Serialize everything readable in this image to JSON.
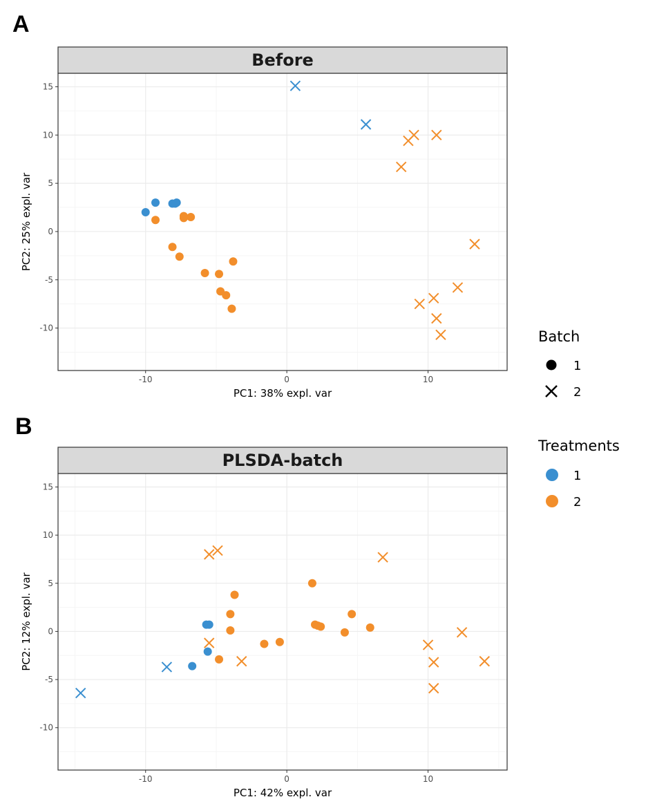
{
  "figure": {
    "panel_labels": [
      "A",
      "B"
    ]
  },
  "colors": {
    "treatment_1": "#3a8fd0",
    "treatment_2": "#f28e2b",
    "strip_fill": "#d9d9d9",
    "grid_major": "#ebebeb",
    "grid_minor": "#f5f5f5",
    "panel_border": "#333333"
  },
  "legend": {
    "batch": {
      "title": "Batch",
      "entries": [
        {
          "label": "1",
          "shape": "circle"
        },
        {
          "label": "2",
          "shape": "cross"
        }
      ]
    },
    "treatments": {
      "title": "Treatments",
      "entries": [
        {
          "label": "1",
          "color": "#3a8fd0"
        },
        {
          "label": "2",
          "color": "#f28e2b"
        }
      ]
    }
  },
  "chart_data": [
    {
      "type": "scatter",
      "panel": "A",
      "title": "Before",
      "xlabel": "PC1: 38% expl. var",
      "ylabel": "PC2: 25% expl. var",
      "xlim": [
        -16.2,
        15.6
      ],
      "ylim": [
        -14.4,
        16.4
      ],
      "xticks": [
        -10,
        0,
        10
      ],
      "yticks": [
        -10,
        -5,
        0,
        5,
        10,
        15
      ],
      "grid": true,
      "series": [
        {
          "treatment": "1",
          "batch": "1",
          "points": [
            [
              -10.0,
              2.0
            ],
            [
              -9.3,
              3.0
            ],
            [
              -8.1,
              2.9
            ],
            [
              -7.8,
              3.0
            ],
            [
              -7.9,
              2.9
            ]
          ]
        },
        {
          "treatment": "2",
          "batch": "1",
          "points": [
            [
              -9.3,
              1.2
            ],
            [
              -7.3,
              1.6
            ],
            [
              -7.3,
              1.4
            ],
            [
              -6.8,
              1.5
            ],
            [
              -8.1,
              -1.6
            ],
            [
              -7.6,
              -2.6
            ],
            [
              -5.8,
              -4.3
            ],
            [
              -4.8,
              -4.4
            ],
            [
              -3.8,
              -3.1
            ],
            [
              -4.7,
              -6.2
            ],
            [
              -4.3,
              -6.6
            ],
            [
              -3.9,
              -8.0
            ]
          ]
        },
        {
          "treatment": "1",
          "batch": "2",
          "points": [
            [
              0.6,
              15.1
            ],
            [
              5.6,
              11.1
            ]
          ]
        },
        {
          "treatment": "2",
          "batch": "2",
          "points": [
            [
              8.1,
              6.7
            ],
            [
              8.6,
              9.4
            ],
            [
              9.0,
              10.0
            ],
            [
              10.6,
              10.0
            ],
            [
              13.3,
              -1.3
            ],
            [
              12.1,
              -5.8
            ],
            [
              9.4,
              -7.5
            ],
            [
              10.4,
              -6.9
            ],
            [
              10.6,
              -9.0
            ],
            [
              10.9,
              -10.7
            ]
          ]
        }
      ]
    },
    {
      "type": "scatter",
      "panel": "B",
      "title": "PLSDA-batch",
      "xlabel": "PC1: 42% expl. var",
      "ylabel": "PC2: 12% expl. var",
      "xlim": [
        -16.2,
        15.6
      ],
      "ylim": [
        -14.4,
        16.4
      ],
      "xticks": [
        -10,
        0,
        10
      ],
      "yticks": [
        -10,
        -5,
        0,
        5,
        10,
        15
      ],
      "grid": true,
      "series": [
        {
          "treatment": "1",
          "batch": "1",
          "points": [
            [
              -5.7,
              0.7
            ],
            [
              -5.5,
              0.7
            ],
            [
              -5.6,
              -2.1
            ],
            [
              -6.7,
              -3.6
            ]
          ]
        },
        {
          "treatment": "2",
          "batch": "1",
          "points": [
            [
              -3.7,
              3.8
            ],
            [
              -4.0,
              1.8
            ],
            [
              -4.0,
              0.1
            ],
            [
              -4.8,
              -2.9
            ],
            [
              -1.6,
              -1.3
            ],
            [
              -0.5,
              -1.1
            ],
            [
              1.8,
              5.0
            ],
            [
              2.0,
              0.7
            ],
            [
              2.2,
              0.6
            ],
            [
              2.4,
              0.5
            ],
            [
              4.1,
              -0.1
            ],
            [
              4.6,
              1.8
            ],
            [
              5.9,
              0.4
            ]
          ]
        },
        {
          "treatment": "1",
          "batch": "2",
          "points": [
            [
              -14.6,
              -6.4
            ],
            [
              -8.5,
              -3.7
            ]
          ]
        },
        {
          "treatment": "2",
          "batch": "2",
          "points": [
            [
              -5.5,
              8.0
            ],
            [
              -4.9,
              8.4
            ],
            [
              -5.5,
              -1.2
            ],
            [
              -3.2,
              -3.1
            ],
            [
              6.8,
              7.7
            ],
            [
              10.0,
              -1.4
            ],
            [
              10.4,
              -3.2
            ],
            [
              10.4,
              -5.9
            ],
            [
              12.4,
              -0.1
            ],
            [
              14.0,
              -3.1
            ]
          ]
        }
      ]
    }
  ]
}
